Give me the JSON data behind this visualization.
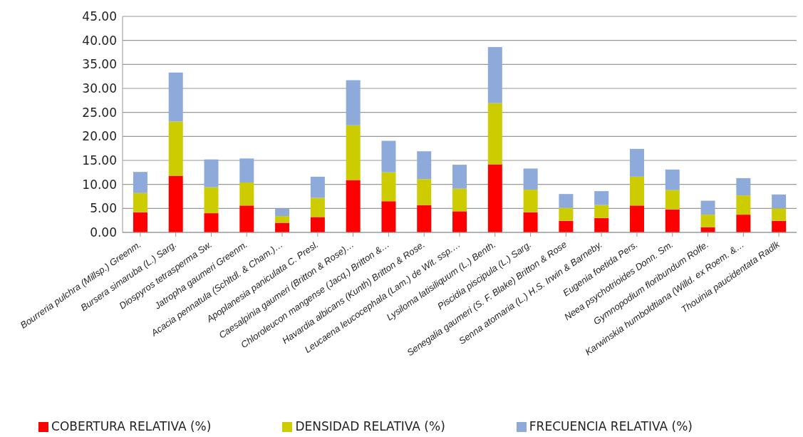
{
  "chart_data": {
    "type": "bar",
    "stacked": true,
    "categories": [
      "Bourreria pulchra (Millsp.) Greenm.",
      "Bursera simaruba (L.) Sarg.",
      "Diospyros tetrasperma Sw.",
      "Jatropha gaumeri Greenm.",
      "Acacia pennatula (Schltdl. & Cham.)…",
      "Apoplanesia paniculata C. Presl.",
      "Caesalpinia gaumeri (Britton & Rose)…",
      "Chloroleucon mangense (Jacq.) Britton &…",
      "Havardia albicans (Kunth) Britton & Rose.",
      "Leucaena leucocephala (Lam.) de Wit. ssp.…",
      "Lysiloma latisiliquum (L.) Benth.",
      "Piscidia piscipula (L.) Sarg.",
      "Senegalia gaumeri (S. F. Blake) Britton & Rose",
      "Senna atomaria (L.) H.S. Irwin & Barneby.",
      "Eugenia foetida Pers.",
      "Neea psychotrioides Donn. Sm.",
      "Gymnopodium floribundum Rolfe.",
      "Karwinskia humboldtiana (Willd. ex Roem. &…",
      "Thouinia paucidentata Radlk"
    ],
    "series": [
      {
        "name": "COBERTURA RELATIVA (%)",
        "color": "#ff0000",
        "values": [
          4.2,
          11.8,
          4.0,
          5.6,
          2.0,
          3.2,
          10.9,
          6.5,
          5.7,
          4.4,
          14.2,
          4.2,
          2.4,
          3.0,
          5.6,
          4.8,
          1.1,
          3.7,
          2.4
        ]
      },
      {
        "name": "DENSIDAD RELATIVA (%)",
        "color": "#cccc00",
        "values": [
          4.0,
          11.3,
          5.4,
          4.8,
          1.4,
          4.0,
          11.4,
          6.0,
          5.4,
          4.7,
          12.7,
          4.7,
          2.7,
          2.7,
          6.0,
          4.0,
          2.6,
          4.0,
          2.6
        ]
      },
      {
        "name": "FRECUENCIA RELATIVA (%)",
        "color": "#8eaadb",
        "values": [
          4.4,
          10.2,
          5.8,
          5.0,
          1.5,
          4.4,
          9.4,
          6.6,
          5.8,
          5.0,
          11.7,
          4.4,
          2.9,
          2.9,
          5.8,
          4.3,
          2.9,
          3.6,
          2.9
        ]
      }
    ],
    "ylim": [
      0,
      45
    ],
    "yticks": [
      {
        "value": 0,
        "label": "0.00"
      },
      {
        "value": 5,
        "label": "5.00"
      },
      {
        "value": 10,
        "label": "10.00"
      },
      {
        "value": 15,
        "label": "15.00"
      },
      {
        "value": 20,
        "label": "20.00"
      },
      {
        "value": 25,
        "label": "25.00"
      },
      {
        "value": 30,
        "label": "30.00"
      },
      {
        "value": 35,
        "label": "35.00"
      },
      {
        "value": 40,
        "label": "40.00"
      },
      {
        "value": 45,
        "label": "45.00"
      }
    ],
    "grid": "y",
    "legend": "bottom"
  }
}
